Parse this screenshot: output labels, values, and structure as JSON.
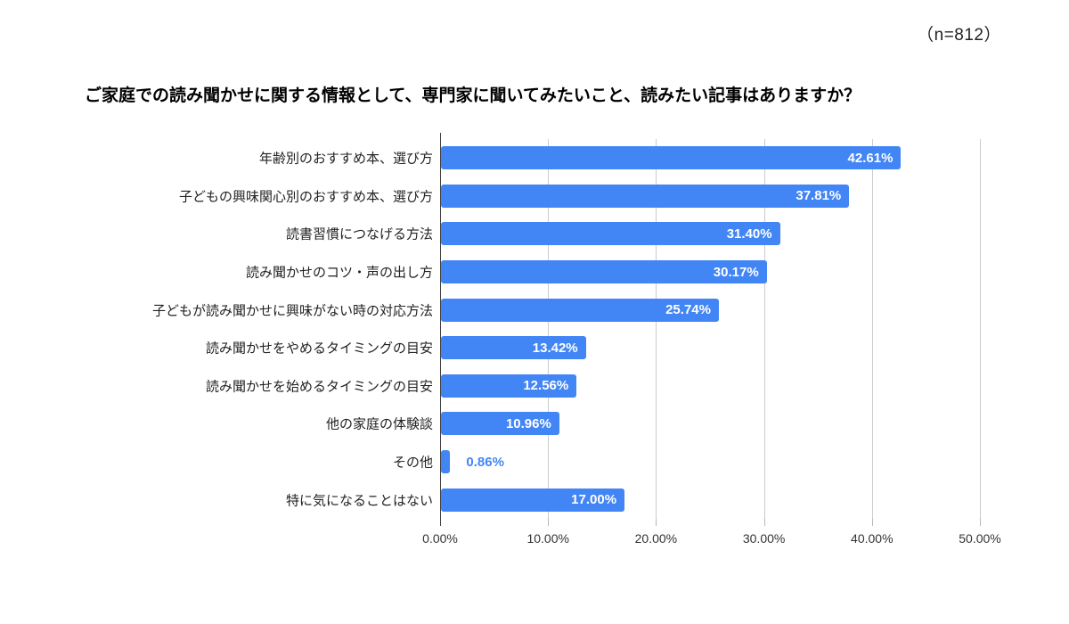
{
  "header": {
    "sample_size": "（n=812）",
    "title": "ご家庭での読み聞かせに関する情報として、専門家に聞いてみたいこと、読みたい記事はありますか？"
  },
  "chart_data": {
    "type": "bar",
    "orientation": "horizontal",
    "title": "ご家庭での読み聞かせに関する情報として、専門家に聞いてみたいこと、読みたい記事はありますか？",
    "sample_size_note": "（n=812）",
    "categories": [
      "年齢別のおすすめ本、選び方",
      "子どもの興味関心別のおすすめ本、選び方",
      "読書習慣につなげる方法",
      "読み聞かせのコツ・声の出し方",
      "子どもが読み聞かせに興味がない時の対応方法",
      "読み聞かせをやめるタイミングの目安",
      "読み聞かせを始めるタイミングの目安",
      "他の家庭の体験談",
      "その他",
      "特に気になることはない"
    ],
    "values": [
      42.61,
      37.81,
      31.4,
      30.17,
      25.74,
      13.42,
      12.56,
      10.96,
      0.86,
      17.0
    ],
    "value_labels": [
      "42.61%",
      "37.81%",
      "31.40%",
      "30.17%",
      "25.74%",
      "13.42%",
      "12.56%",
      "10.96%",
      "0.86%",
      "17.00%"
    ],
    "x_ticks": [
      0,
      10,
      20,
      30,
      40,
      50
    ],
    "x_tick_labels": [
      "0.00%",
      "10.00%",
      "20.00%",
      "30.00%",
      "40.00%",
      "50.00%"
    ],
    "xlim": [
      0,
      50
    ],
    "grid": true,
    "bar_color": "#4285f4",
    "gridline_color": "#cccccc",
    "axis_line_color": "#424242",
    "value_label_color_inside": "#ffffff",
    "value_label_color_outside": "#4285f4",
    "outside_label_threshold": 5
  }
}
